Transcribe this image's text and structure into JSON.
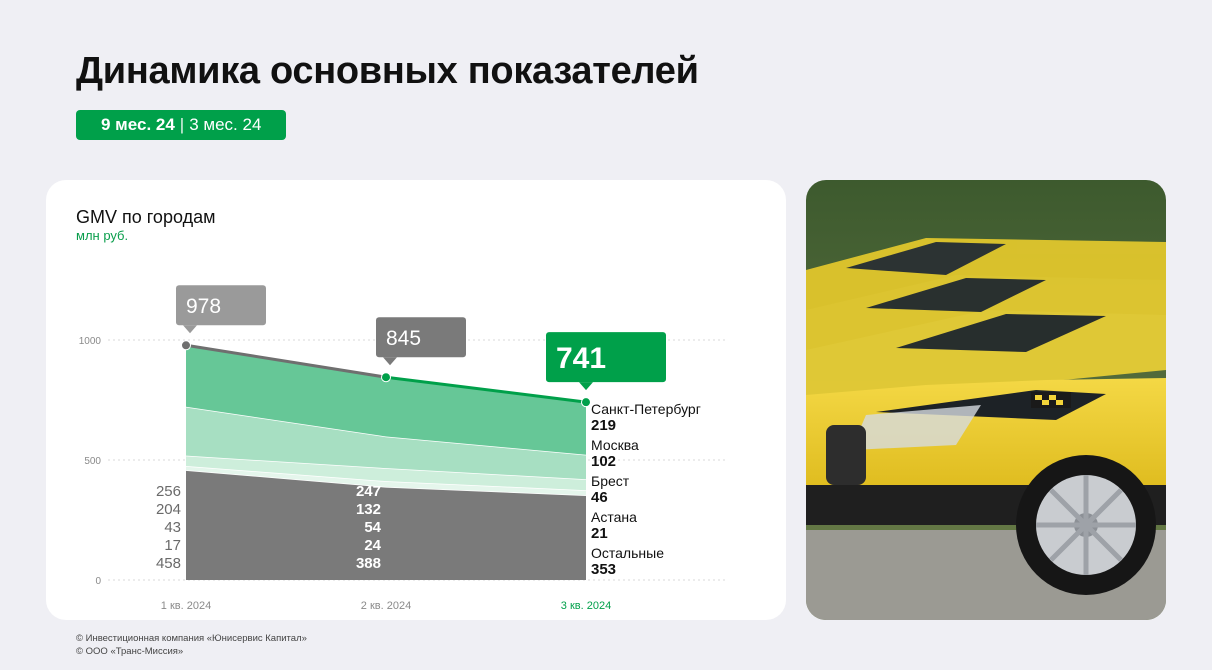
{
  "page": {
    "title": "Динамика основных показателей",
    "period_active": "9 мес. 24",
    "period_separator": "|",
    "period_inactive": "3 мес. 24"
  },
  "footer": {
    "line1": "© Инвестиционная компания «Юнисервис Капитал»",
    "line2": "© ООО «Транс-Миссия»"
  },
  "photo": {
    "subject": "yellow taxi cars"
  },
  "colors": {
    "accent": "#00a04a",
    "area_spb": "#66c797",
    "area_moscow": "#a7dfc2",
    "area_brest": "#cdeedb",
    "area_astana": "#e5f6ec",
    "area_other": "#7a7a7a",
    "callout_gray": "#7a7a7a",
    "callout_light": "#9a9a9a"
  },
  "chart_data": {
    "type": "area",
    "title": "GMV по городам",
    "unit": "млн руб.",
    "categories": [
      "1 кв. 2024",
      "2 кв. 2024",
      "3 кв. 2024"
    ],
    "highlight_category": "3 кв. 2024",
    "ylim": [
      0,
      1000
    ],
    "yticks": [
      0,
      500,
      1000
    ],
    "grid": true,
    "totals": [
      978,
      845,
      741
    ],
    "series": [
      {
        "name": "Остальные",
        "values": [
          458,
          388,
          353
        ]
      },
      {
        "name": "Астана",
        "values": [
          17,
          24,
          21
        ]
      },
      {
        "name": "Брест",
        "values": [
          43,
          54,
          46
        ]
      },
      {
        "name": "Москва",
        "values": [
          204,
          132,
          102
        ]
      },
      {
        "name": "Санкт-Петербург",
        "values": [
          256,
          247,
          219
        ]
      }
    ]
  }
}
